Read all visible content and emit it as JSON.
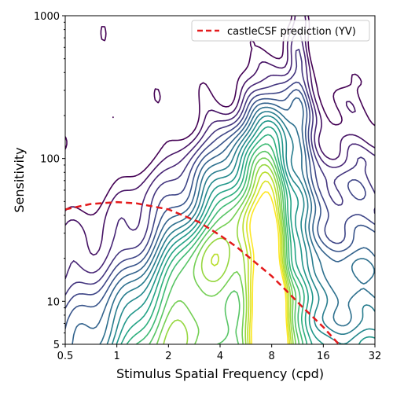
{
  "chart_data": {
    "type": "contour",
    "xlabel": "Stimulus Spatial Frequency (cpd)",
    "ylabel": "Sensitivity",
    "xscale": "log2",
    "yscale": "log10",
    "xlim": [
      0.5,
      32
    ],
    "ylim": [
      5,
      1000
    ],
    "x_ticks": [
      {
        "value": 0.5,
        "label": "0.5"
      },
      {
        "value": 1,
        "label": "1"
      },
      {
        "value": 2,
        "label": "2"
      },
      {
        "value": 4,
        "label": "4"
      },
      {
        "value": 8,
        "label": "8"
      },
      {
        "value": 16,
        "label": "16"
      },
      {
        "value": 32,
        "label": "32"
      }
    ],
    "y_ticks": [
      {
        "value": 5,
        "label": "5"
      },
      {
        "value": 10,
        "label": "10"
      },
      {
        "value": 100,
        "label": "100"
      },
      {
        "value": 1000,
        "label": "1000"
      }
    ],
    "grid": false,
    "legend_position": "top-right",
    "colormap": "viridis",
    "contour_levels": 20,
    "series": [
      {
        "name": "castleCSF prediction (YV)",
        "style": "dashed",
        "color": "#e41a1c",
        "x": [
          0.5,
          0.7,
          1.0,
          1.3,
          2.0,
          3.0,
          4.0,
          5.0,
          6.0,
          8.0,
          10.0,
          12.0,
          16.0,
          20.0,
          25.0,
          30.0
        ],
        "y": [
          44,
          48,
          49.5,
          48.5,
          44,
          36,
          29,
          24,
          20,
          15,
          11.5,
          9.2,
          6.6,
          4.9,
          3.6,
          2.7
        ]
      }
    ]
  }
}
